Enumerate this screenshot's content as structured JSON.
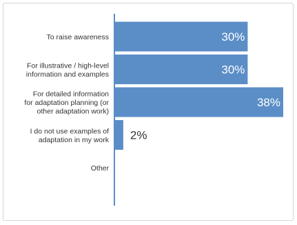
{
  "chart_data": {
    "type": "bar",
    "orientation": "horizontal",
    "categories": [
      [
        "To raise awareness"
      ],
      [
        "For illustrative / high-level",
        "information and examples"
      ],
      [
        "For detailed information",
        "for adaptation planning (or",
        "other adaptation work)"
      ],
      [
        "I do not use examples of",
        "adaptation in my work"
      ],
      [
        "Other"
      ]
    ],
    "values": [
      30,
      30,
      38,
      2,
      0
    ],
    "value_labels": [
      "30%",
      "30%",
      "38%",
      "2%",
      ""
    ],
    "xlim": [
      0,
      38
    ],
    "bar_color": "#5b8ec7",
    "axis_color": "#5b8ec7",
    "grid": false,
    "legend": "none",
    "title": ""
  }
}
